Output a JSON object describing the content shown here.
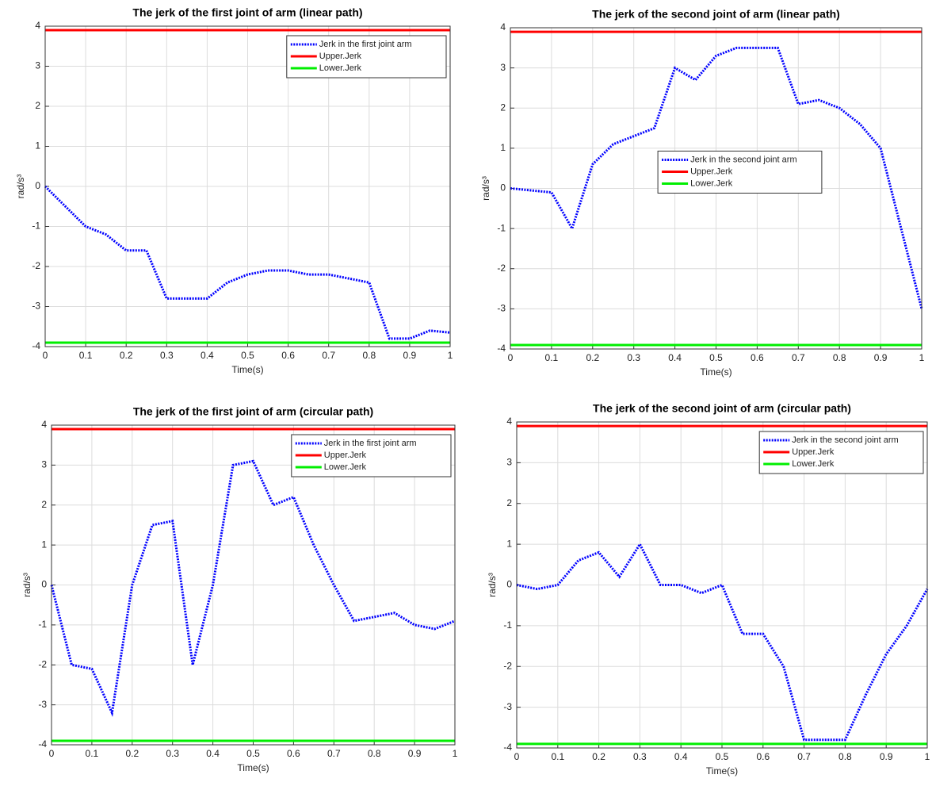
{
  "chart_data": [
    {
      "type": "line",
      "title": "The jerk of the first joint of arm (linear path)",
      "xlabel": "Time(s)",
      "ylabel": "rad/s³",
      "x": [
        0,
        0.05,
        0.1,
        0.15,
        0.2,
        0.25,
        0.3,
        0.35,
        0.4,
        0.45,
        0.5,
        0.55,
        0.6,
        0.65,
        0.7,
        0.75,
        0.8,
        0.85,
        0.9,
        0.95,
        1
      ],
      "series": [
        {
          "name": "Jerk in the first joint arm",
          "color": "#0000ff",
          "style": "dotted",
          "values": [
            0,
            -0.5,
            -1.0,
            -1.2,
            -1.6,
            -1.6,
            -2.8,
            -2.8,
            -2.8,
            -2.4,
            -2.2,
            -2.1,
            -2.1,
            -2.2,
            -2.2,
            -2.3,
            -2.4,
            -3.8,
            -3.8,
            -3.6,
            -3.65
          ]
        },
        {
          "name": "Upper.Jerk",
          "color": "#ff0000",
          "style": "solid",
          "values": [
            3.9,
            3.9,
            3.9,
            3.9,
            3.9,
            3.9,
            3.9,
            3.9,
            3.9,
            3.9,
            3.9,
            3.9,
            3.9,
            3.9,
            3.9,
            3.9,
            3.9,
            3.9,
            3.9,
            3.9,
            3.9
          ]
        },
        {
          "name": "Lower.Jerk",
          "color": "#00ee00",
          "style": "solid",
          "values": [
            -3.9,
            -3.9,
            -3.9,
            -3.9,
            -3.9,
            -3.9,
            -3.9,
            -3.9,
            -3.9,
            -3.9,
            -3.9,
            -3.9,
            -3.9,
            -3.9,
            -3.9,
            -3.9,
            -3.9,
            -3.9,
            -3.9,
            -3.9,
            -3.9
          ]
        }
      ],
      "xlim": [
        0,
        1
      ],
      "xticks": [
        0,
        0.1,
        0.2,
        0.3,
        0.4,
        0.5,
        0.6,
        0.7,
        0.8,
        0.9,
        1
      ],
      "ylim": [
        -4,
        4
      ],
      "yticks": [
        -4,
        -3,
        -2,
        -1,
        0,
        1,
        2,
        3,
        4
      ],
      "grid": true,
      "legend": "northeast"
    },
    {
      "type": "line",
      "title": "The jerk of the second joint of arm (linear path)",
      "xlabel": "Time(s)",
      "ylabel": "rad/s³",
      "x": [
        0,
        0.05,
        0.1,
        0.15,
        0.2,
        0.25,
        0.3,
        0.35,
        0.4,
        0.45,
        0.5,
        0.55,
        0.6,
        0.65,
        0.7,
        0.75,
        0.8,
        0.85,
        0.9,
        0.95,
        1
      ],
      "series": [
        {
          "name": "Jerk in the second joint arm",
          "color": "#0000ff",
          "style": "dotted",
          "values": [
            0,
            -0.05,
            -0.1,
            -1.0,
            0.6,
            1.1,
            1.3,
            1.5,
            3.0,
            2.7,
            3.3,
            3.5,
            3.5,
            3.5,
            2.1,
            2.2,
            2.0,
            1.6,
            1.0,
            -1.0,
            -3.0
          ]
        },
        {
          "name": "Upper.Jerk",
          "color": "#ff0000",
          "style": "solid",
          "values": [
            3.9,
            3.9,
            3.9,
            3.9,
            3.9,
            3.9,
            3.9,
            3.9,
            3.9,
            3.9,
            3.9,
            3.9,
            3.9,
            3.9,
            3.9,
            3.9,
            3.9,
            3.9,
            3.9,
            3.9,
            3.9
          ]
        },
        {
          "name": "Lower.Jerk",
          "color": "#00ee00",
          "style": "solid",
          "values": [
            -3.9,
            -3.9,
            -3.9,
            -3.9,
            -3.9,
            -3.9,
            -3.9,
            -3.9,
            -3.9,
            -3.9,
            -3.9,
            -3.9,
            -3.9,
            -3.9,
            -3.9,
            -3.9,
            -3.9,
            -3.9,
            -3.9,
            -3.9,
            -3.9
          ]
        }
      ],
      "xlim": [
        0,
        1
      ],
      "xticks": [
        0,
        0.1,
        0.2,
        0.3,
        0.4,
        0.5,
        0.6,
        0.7,
        0.8,
        0.9,
        1
      ],
      "ylim": [
        -4,
        4
      ],
      "yticks": [
        -4,
        -3,
        -2,
        -1,
        0,
        1,
        2,
        3,
        4
      ],
      "grid": true,
      "legend": "center"
    },
    {
      "type": "line",
      "title": "The jerk of the first joint of arm (circular path)",
      "xlabel": "Time(s)",
      "ylabel": "rad/s³",
      "x": [
        0,
        0.05,
        0.1,
        0.15,
        0.2,
        0.25,
        0.3,
        0.35,
        0.4,
        0.45,
        0.5,
        0.55,
        0.6,
        0.65,
        0.7,
        0.75,
        0.8,
        0.85,
        0.9,
        0.95,
        1
      ],
      "series": [
        {
          "name": "Jerk in the first joint arm",
          "color": "#0000ff",
          "style": "dotted",
          "values": [
            0,
            -2.0,
            -2.1,
            -3.2,
            0,
            1.5,
            1.6,
            -2.0,
            0,
            3.0,
            3.1,
            2.0,
            2.2,
            1.0,
            0,
            -0.9,
            -0.8,
            -0.7,
            -1.0,
            -1.1,
            -0.9
          ]
        },
        {
          "name": "Upper.Jerk",
          "color": "#ff0000",
          "style": "solid",
          "values": [
            3.9,
            3.9,
            3.9,
            3.9,
            3.9,
            3.9,
            3.9,
            3.9,
            3.9,
            3.9,
            3.9,
            3.9,
            3.9,
            3.9,
            3.9,
            3.9,
            3.9,
            3.9,
            3.9,
            3.9,
            3.9
          ]
        },
        {
          "name": "Lower.Jerk",
          "color": "#00ee00",
          "style": "solid",
          "values": [
            -3.9,
            -3.9,
            -3.9,
            -3.9,
            -3.9,
            -3.9,
            -3.9,
            -3.9,
            -3.9,
            -3.9,
            -3.9,
            -3.9,
            -3.9,
            -3.9,
            -3.9,
            -3.9,
            -3.9,
            -3.9,
            -3.9,
            -3.9,
            -3.9
          ]
        }
      ],
      "xlim": [
        0,
        1
      ],
      "xticks": [
        0,
        0.1,
        0.2,
        0.3,
        0.4,
        0.5,
        0.6,
        0.7,
        0.8,
        0.9,
        1
      ],
      "ylim": [
        -4,
        4
      ],
      "yticks": [
        -4,
        -3,
        -2,
        -1,
        0,
        1,
        2,
        3,
        4
      ],
      "grid": true,
      "legend": "northeast"
    },
    {
      "type": "line",
      "title": "The jerk of the second joint of arm (circular path)",
      "xlabel": "Time(s)",
      "ylabel": "rad/s³",
      "x": [
        0,
        0.05,
        0.1,
        0.15,
        0.2,
        0.25,
        0.3,
        0.35,
        0.4,
        0.45,
        0.5,
        0.55,
        0.6,
        0.65,
        0.7,
        0.75,
        0.8,
        0.85,
        0.9,
        0.95,
        1
      ],
      "series": [
        {
          "name": "Jerk in the second joint arm",
          "color": "#0000ff",
          "style": "dotted",
          "values": [
            0,
            -0.1,
            0,
            0.6,
            0.8,
            0.2,
            1.0,
            0,
            0,
            -0.2,
            0,
            -1.2,
            -1.2,
            -2.0,
            -3.8,
            -3.8,
            -3.8,
            -2.7,
            -1.7,
            -1.0,
            -0.1
          ]
        },
        {
          "name": "Upper.Jerk",
          "color": "#ff0000",
          "style": "solid",
          "values": [
            3.9,
            3.9,
            3.9,
            3.9,
            3.9,
            3.9,
            3.9,
            3.9,
            3.9,
            3.9,
            3.9,
            3.9,
            3.9,
            3.9,
            3.9,
            3.9,
            3.9,
            3.9,
            3.9,
            3.9,
            3.9
          ]
        },
        {
          "name": "Lower.Jerk",
          "color": "#00ee00",
          "style": "solid",
          "values": [
            -3.9,
            -3.9,
            -3.9,
            -3.9,
            -3.9,
            -3.9,
            -3.9,
            -3.9,
            -3.9,
            -3.9,
            -3.9,
            -3.9,
            -3.9,
            -3.9,
            -3.9,
            -3.9,
            -3.9,
            -3.9,
            -3.9,
            -3.9,
            -3.9
          ]
        }
      ],
      "xlim": [
        0,
        1
      ],
      "xticks": [
        0,
        0.1,
        0.2,
        0.3,
        0.4,
        0.5,
        0.6,
        0.7,
        0.8,
        0.9,
        1
      ],
      "ylim": [
        -4,
        4
      ],
      "yticks": [
        -4,
        -3,
        -2,
        -1,
        0,
        1,
        2,
        3,
        4
      ],
      "grid": true,
      "legend": "northeast"
    }
  ]
}
